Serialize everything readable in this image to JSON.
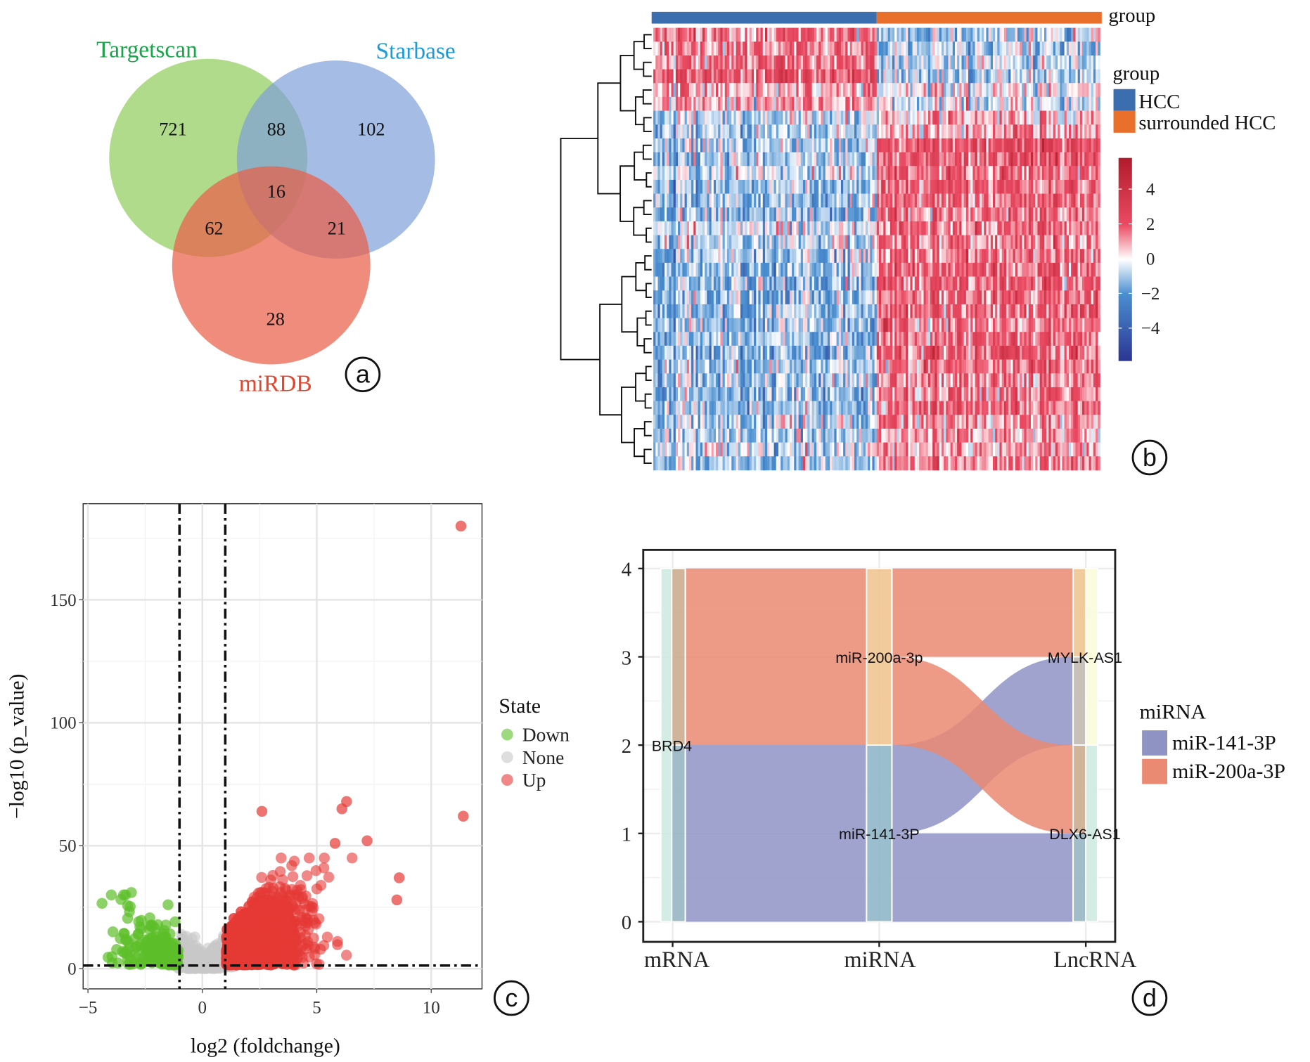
{
  "panel_labels": [
    "a",
    "b",
    "c",
    "d"
  ],
  "chart_data": [
    {
      "type": "venn",
      "panel": "a",
      "sets": [
        {
          "name": "Targetscan",
          "color": "#8fcc5a",
          "label_color": "#1aa34a"
        },
        {
          "name": "Starbase",
          "color": "#7f9fd8",
          "label_color": "#1e9ad6"
        },
        {
          "name": "miRDB",
          "color": "#e9604a",
          "label_color": "#e8452c"
        }
      ],
      "regions": {
        "Targetscan_only": "721",
        "Starbase_only": "102",
        "miRDB_only": "28",
        "Targetscan_Starbase": "88",
        "Targetscan_miRDB": "62",
        "Starbase_miRDB": "21",
        "all_three": "16"
      }
    },
    {
      "type": "heatmap",
      "panel": "b",
      "annotation_title": "group",
      "legend_title": "group",
      "groups": [
        {
          "name": "HCC",
          "color": "#3b6eae"
        },
        {
          "name": "surrounded HCC",
          "color": "#e8702a"
        }
      ],
      "row_means_hcc_vs_surrounded": [
        [
          1.6,
          -0.8
        ],
        [
          1.4,
          -0.9
        ],
        [
          1.5,
          -0.9
        ],
        [
          2.2,
          -0.9
        ],
        [
          0.9,
          0.1
        ],
        [
          0.9,
          -0.3
        ],
        [
          -0.6,
          0.6
        ],
        [
          -0.8,
          0.9
        ],
        [
          -0.7,
          2.2
        ],
        [
          -0.9,
          2.0
        ],
        [
          -0.5,
          1.6
        ],
        [
          -1.1,
          1.8
        ],
        [
          -1.0,
          1.6
        ],
        [
          -1.2,
          1.5
        ],
        [
          -0.4,
          1.6
        ],
        [
          -0.7,
          1.4
        ],
        [
          -0.8,
          1.6
        ],
        [
          -1.3,
          1.8
        ],
        [
          -1.2,
          1.7
        ],
        [
          -1.1,
          1.6
        ],
        [
          -1.3,
          1.8
        ],
        [
          -1.2,
          1.5
        ],
        [
          -1.0,
          1.6
        ],
        [
          -1.3,
          1.9
        ],
        [
          -1.1,
          1.6
        ],
        [
          -1.0,
          1.4
        ],
        [
          -1.2,
          1.5
        ],
        [
          -1.1,
          1.5
        ],
        [
          -0.9,
          1.2
        ],
        [
          -0.9,
          1.1
        ],
        [
          -0.3,
          0.9
        ],
        [
          -0.9,
          1.2
        ]
      ],
      "columns_per_group": 100,
      "color_scale": {
        "ticks": [
          4,
          2,
          0,
          -2,
          -4
        ],
        "tick_labels": [
          "4",
          "2",
          "0",
          "−2",
          "−4"
        ],
        "range": [
          -5.8,
          5.8
        ],
        "colors": [
          "#2c3592",
          "#4a8fd0",
          "#ffffff",
          "#ea4b63",
          "#b11b2a"
        ]
      }
    },
    {
      "type": "scatter",
      "panel": "c",
      "xlabel": "log2 (foldchange)",
      "ylabel": "−log10 (p_value)",
      "xlim": [
        -5.3,
        12.2
      ],
      "ylim": [
        -8,
        189
      ],
      "xticks": [
        -5,
        0,
        5,
        10
      ],
      "xtick_labels": [
        "−5",
        "0",
        "5",
        "10"
      ],
      "yticks": [
        0,
        50,
        100,
        150
      ],
      "ytick_labels": [
        "0",
        "50",
        "100",
        "150"
      ],
      "grid": true,
      "thresholds": {
        "x": [
          -1,
          1
        ],
        "y": 1.3
      },
      "legend": {
        "title": "State",
        "placement": "right",
        "entries": [
          {
            "name": "Down",
            "color": "#5cbf2a"
          },
          {
            "name": "None",
            "color": "#c8c8c8"
          },
          {
            "name": "Up",
            "color": "#e53935"
          }
        ]
      },
      "notable_points": [
        {
          "x": 11.3,
          "y": 180,
          "state": "Up"
        },
        {
          "x": 11.4,
          "y": 62,
          "state": "Up"
        },
        {
          "x": 6.3,
          "y": 68,
          "state": "Up"
        },
        {
          "x": 6.1,
          "y": 65,
          "state": "Up"
        },
        {
          "x": 2.6,
          "y": 64,
          "state": "Up"
        },
        {
          "x": 5.8,
          "y": 51,
          "state": "Up"
        },
        {
          "x": 7.2,
          "y": 52,
          "state": "Up"
        },
        {
          "x": 8.6,
          "y": 37,
          "state": "Up"
        },
        {
          "x": 8.5,
          "y": 28,
          "state": "Up"
        },
        {
          "x": -3.1,
          "y": 31,
          "state": "Down"
        },
        {
          "x": -1.5,
          "y": 26,
          "state": "Down"
        }
      ]
    },
    {
      "type": "alluvial",
      "panel": "d",
      "axes": [
        "mRNA",
        "miRNA",
        "LncRNA"
      ],
      "ylim": [
        0,
        4
      ],
      "yticks": [
        0,
        1,
        2,
        3,
        4
      ],
      "ytick_labels": [
        "0",
        "1",
        "2",
        "3",
        "4"
      ],
      "strata": {
        "mRNA": [
          {
            "name": "BRD4",
            "range": [
              0,
              4
            ]
          }
        ],
        "miRNA": [
          {
            "name": "miR-141-3P",
            "range": [
              0,
              2
            ]
          },
          {
            "name": "miR-200a-3p",
            "range": [
              2,
              4
            ]
          }
        ],
        "LncRNA": [
          {
            "name": "DLX6-AS1",
            "range": [
              0,
              2
            ]
          },
          {
            "name": "MYLK-AS1",
            "range": [
              2,
              4
            ]
          }
        ]
      },
      "flows": [
        {
          "mRNA": "BRD4",
          "miRNA": "miR-200a-3p",
          "LncRNA": "MYLK-AS1",
          "value": 1,
          "fill": "miR-200a-3P"
        },
        {
          "mRNA": "BRD4",
          "miRNA": "miR-200a-3p",
          "LncRNA": "DLX6-AS1",
          "value": 1,
          "fill": "miR-200a-3P"
        },
        {
          "mRNA": "BRD4",
          "miRNA": "miR-141-3P",
          "LncRNA": "MYLK-AS1",
          "value": 1,
          "fill": "miR-141-3P"
        },
        {
          "mRNA": "BRD4",
          "miRNA": "miR-141-3P",
          "LncRNA": "DLX6-AS1",
          "value": 1,
          "fill": "miR-141-3P"
        }
      ],
      "legend": {
        "title": "miRNA",
        "placement": "right",
        "entries": [
          {
            "name": "miR-141-3P",
            "color": "#8e93c4"
          },
          {
            "name": "miR-200a-3P",
            "color": "#ea8a72"
          }
        ]
      }
    }
  ]
}
